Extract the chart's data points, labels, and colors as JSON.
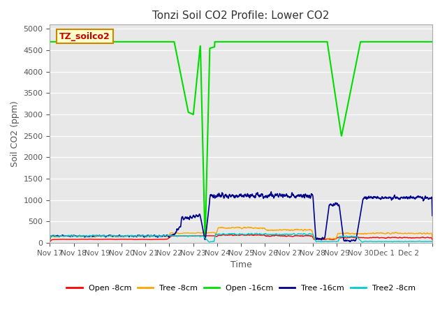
{
  "title": "Tonzi Soil CO2 Profile: Lower CO2",
  "xlabel": "Time",
  "ylabel": "Soil CO2 (ppm)",
  "ylim": [
    0,
    5100
  ],
  "yticks": [
    0,
    500,
    1000,
    1500,
    2000,
    2500,
    3000,
    3500,
    4000,
    4500,
    5000
  ],
  "bg_color": "#e8e8e8",
  "fig_color": "#ffffff",
  "label_box_text": "TZ_soilco2",
  "label_box_color": "#ffffcc",
  "label_box_text_color": "#cc0000",
  "series": {
    "open_8cm": {
      "color": "#ff0000",
      "label": "Open -8cm"
    },
    "tree_8cm": {
      "color": "#ffa500",
      "label": "Tree -8cm"
    },
    "open_16cm": {
      "color": "#00dd00",
      "label": "Open -16cm"
    },
    "tree_16cm": {
      "color": "#00008b",
      "label": "Tree -16cm"
    },
    "tree2_8cm": {
      "color": "#00cccc",
      "label": "Tree2 -8cm"
    }
  },
  "x_tick_positions": [
    0,
    1,
    2,
    3,
    4,
    5,
    6,
    7,
    8,
    9,
    10,
    11,
    12,
    13,
    14,
    15,
    16
  ],
  "x_tick_labels": [
    "Nov 17",
    "Nov 18",
    "Nov 19",
    "Nov 20",
    "Nov 21",
    "Nov 22",
    "Nov 23",
    "Nov 24",
    "Nov 25",
    "Nov 26",
    "Nov 27",
    "Nov 28",
    "Nov 29",
    "Nov 30",
    "Dec 1",
    "Dec 2",
    ""
  ],
  "num_points": 2000
}
